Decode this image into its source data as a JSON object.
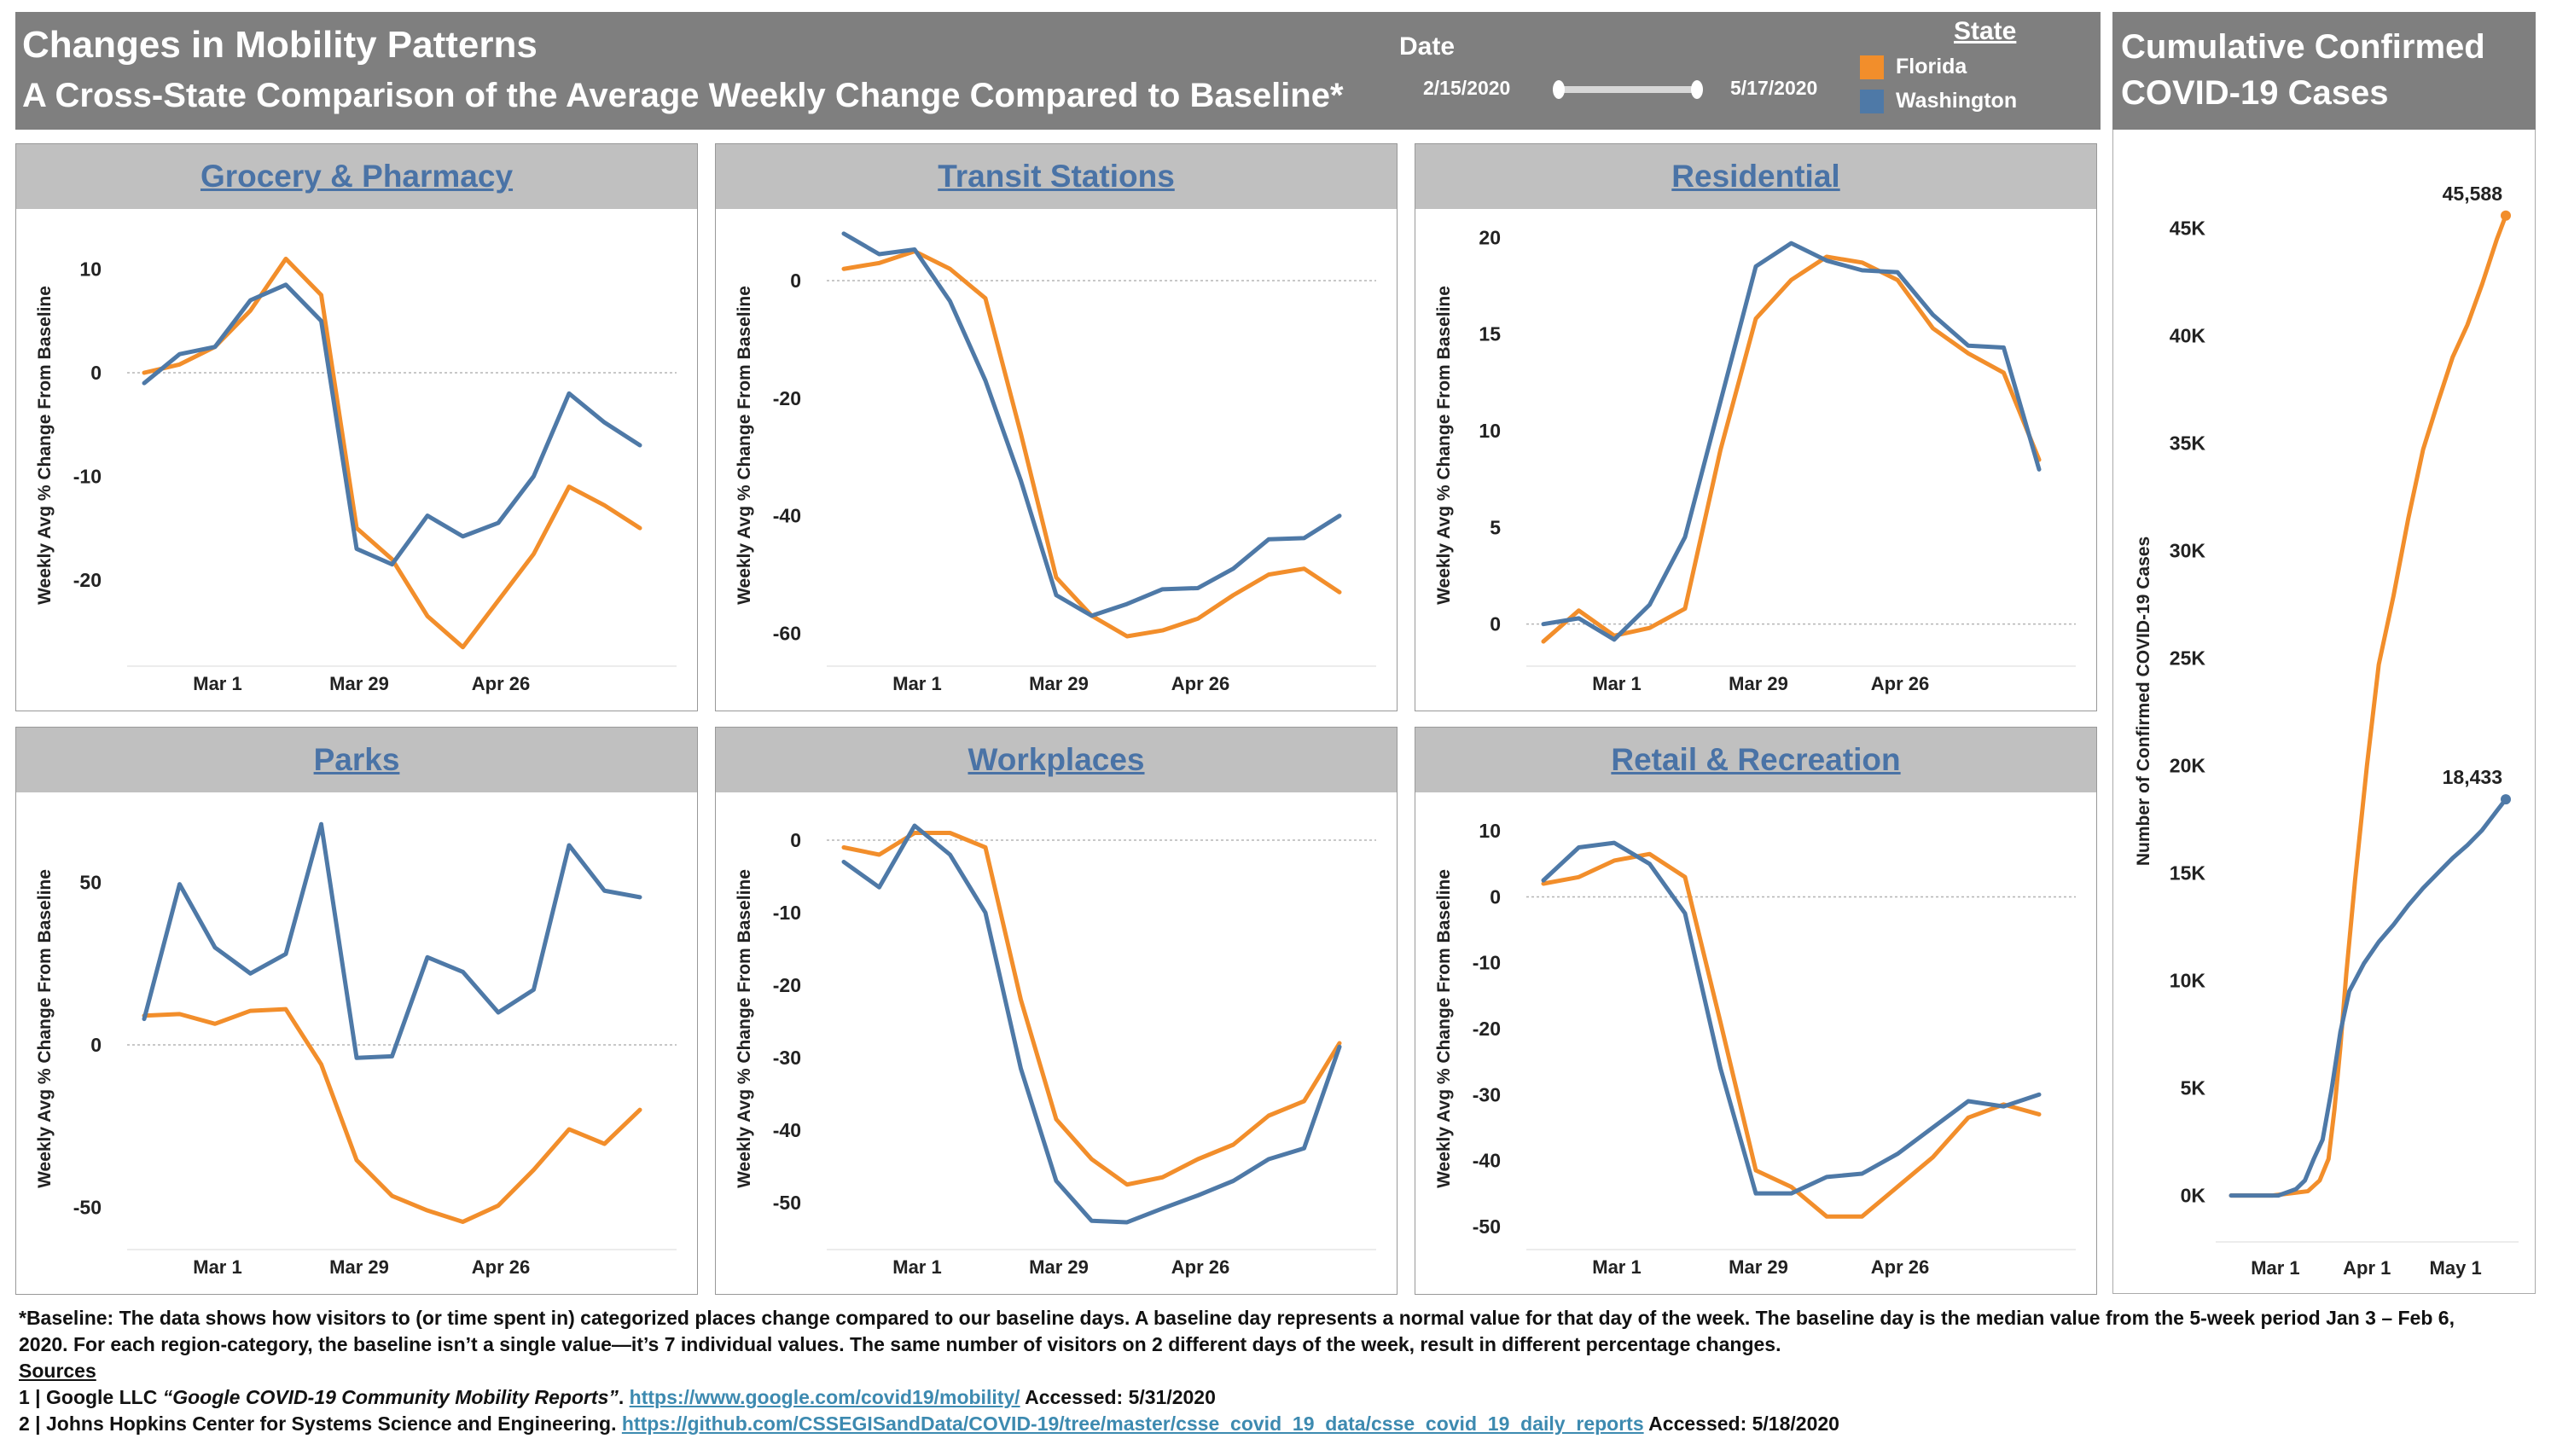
{
  "header": {
    "title": "Changes in Mobility Patterns",
    "subtitle": "A Cross-State Comparison of the Average Weekly Change Compared to Baseline*",
    "date_label": "Date",
    "date_start": "2/15/2020",
    "date_end": "5/17/2020",
    "state_label": "State"
  },
  "legend": [
    {
      "name": "Florida",
      "color": "#f28e2b"
    },
    {
      "name": "Washington",
      "color": "#4e79a7"
    }
  ],
  "right_header": {
    "title_line1": "Cumulative Confirmed",
    "title_line2": "COVID-19 Cases"
  },
  "chart_data": [
    {
      "type": "line",
      "title": "Grocery & Pharmacy",
      "ylabel": "Weekly Avg % Change From Baseline",
      "x_tick_labels": [
        "Mar 1",
        "Mar 29",
        "Apr 26"
      ],
      "ylim": [
        -28,
        14
      ],
      "y_ticks": [
        10,
        0,
        -10,
        -20
      ],
      "series": [
        {
          "name": "Florida",
          "values": [
            0,
            0.8,
            2.5,
            6,
            11,
            7.5,
            -15,
            -18,
            -23.5,
            -26.5,
            -22,
            -17.5,
            -11,
            -12.8,
            -15
          ]
        },
        {
          "name": "Washington",
          "values": [
            -1,
            1.8,
            2.5,
            7,
            8.5,
            5,
            -17,
            -18.5,
            -13.8,
            -15.8,
            -14.5,
            -10,
            -2,
            -4.8,
            -7
          ]
        }
      ]
    },
    {
      "type": "line",
      "title": "Transit Stations",
      "ylabel": "Weekly Avg % Change From Baseline",
      "x_tick_labels": [
        "Mar 1",
        "Mar 29",
        "Apr 26"
      ],
      "ylim": [
        -65,
        9
      ],
      "y_ticks": [
        0,
        -20,
        -40,
        -60
      ],
      "series": [
        {
          "name": "Florida",
          "values": [
            2,
            3,
            5,
            2,
            -3,
            -26,
            -50.5,
            -57,
            -60.5,
            -59.5,
            -57.5,
            -53.5,
            -50,
            -49,
            -53
          ]
        },
        {
          "name": "Washington",
          "values": [
            8,
            4.5,
            5.3,
            -3.5,
            -17,
            -34,
            -53.5,
            -57,
            -55,
            -52.5,
            -52.3,
            -49,
            -44,
            -43.8,
            -40
          ]
        }
      ]
    },
    {
      "type": "line",
      "title": "Residential",
      "ylabel": "Weekly Avg % Change From Baseline",
      "x_tick_labels": [
        "Mar 1",
        "Mar 29",
        "Apr 26"
      ],
      "ylim": [
        -2,
        20.5
      ],
      "y_ticks": [
        20,
        15,
        10,
        5,
        0
      ],
      "series": [
        {
          "name": "Florida",
          "values": [
            -0.9,
            0.7,
            -0.6,
            -0.2,
            0.8,
            9,
            15.8,
            17.8,
            19,
            18.7,
            17.8,
            15.3,
            14,
            13,
            8.5
          ]
        },
        {
          "name": "Washington",
          "values": [
            0,
            0.3,
            -0.8,
            1,
            4.5,
            11.5,
            18.5,
            19.7,
            18.8,
            18.3,
            18.2,
            16,
            14.4,
            14.3,
            8
          ]
        }
      ]
    },
    {
      "type": "line",
      "title": "Parks",
      "ylabel": "Weekly Avg % Change From Baseline",
      "x_tick_labels": [
        "Mar 1",
        "Mar 29",
        "Apr 26"
      ],
      "ylim": [
        -62,
        72
      ],
      "y_ticks": [
        50,
        0,
        -50
      ],
      "series": [
        {
          "name": "Florida",
          "values": [
            9,
            9.5,
            6.5,
            10.5,
            11,
            -6,
            -35.5,
            -46.5,
            -51,
            -54.5,
            -49.5,
            -38.5,
            -26,
            -30.5,
            -20
          ]
        },
        {
          "name": "Washington",
          "values": [
            8,
            49.5,
            30,
            22,
            28,
            68,
            -4,
            -3.5,
            27,
            22.5,
            10,
            17,
            61.5,
            47.5,
            45.5
          ]
        }
      ]
    },
    {
      "type": "line",
      "title": "Workplaces",
      "ylabel": "Weekly Avg % Change From Baseline",
      "x_tick_labels": [
        "Mar 1",
        "Mar 29",
        "Apr 26"
      ],
      "ylim": [
        -56,
        4
      ],
      "y_ticks": [
        0,
        -10,
        -20,
        -30,
        -40,
        -50
      ],
      "series": [
        {
          "name": "Florida",
          "values": [
            -1,
            -2,
            1,
            1,
            -1,
            -22,
            -38.5,
            -44,
            -47.5,
            -46.5,
            -44,
            -42,
            -38,
            -36,
            -28
          ]
        },
        {
          "name": "Washington",
          "values": [
            -3,
            -6.5,
            2,
            -2,
            -10,
            -31.5,
            -47,
            -52.5,
            -52.7,
            -50.8,
            -49,
            -47,
            -44,
            -42.5,
            -28.5
          ]
        }
      ]
    },
    {
      "type": "line",
      "title": "Retail & Recreation",
      "ylabel": "Weekly Avg % Change From Baseline",
      "x_tick_labels": [
        "Mar 1",
        "Mar 29",
        "Apr 26"
      ],
      "ylim": [
        -53,
        13
      ],
      "y_ticks": [
        10,
        0,
        -10,
        -20,
        -30,
        -40,
        -50
      ],
      "series": [
        {
          "name": "Florida",
          "values": [
            2,
            3,
            5.5,
            6.5,
            3,
            -19,
            -41.5,
            -44,
            -48.5,
            -48.5,
            -44,
            -39.5,
            -33.5,
            -31.5,
            -33
          ]
        },
        {
          "name": "Washington",
          "values": [
            2.5,
            7.5,
            8.2,
            5,
            -2.5,
            -26,
            -45,
            -45,
            -42.5,
            -42,
            -39,
            -35,
            -31,
            -31.8,
            -30
          ]
        }
      ]
    },
    {
      "type": "line",
      "title": "Cumulative Confirmed COVID-19 Cases",
      "ylabel": "Number of Confirmed COVID-19 Cases",
      "x_tick_labels": [
        "Mar 1",
        "Apr 1",
        "May 1"
      ],
      "ylim": [
        -2000,
        48000
      ],
      "y_ticks": [
        45000,
        40000,
        35000,
        30000,
        25000,
        20000,
        15000,
        10000,
        5000,
        0
      ],
      "y_tick_labels": [
        "45K",
        "40K",
        "35K",
        "30K",
        "25K",
        "20K",
        "15K",
        "10K",
        "5K",
        "0K"
      ],
      "x_day_range": [
        0,
        93
      ],
      "series": [
        {
          "name": "Florida",
          "end_label": "45,588",
          "x": [
            0,
            14,
            26,
            30,
            33,
            35,
            37,
            39,
            42,
            46,
            50,
            55,
            60,
            65,
            70,
            75,
            80,
            85,
            90,
            93
          ],
          "values": [
            0,
            0,
            200,
            700,
            1700,
            4000,
            6900,
            10300,
            14700,
            20000,
            24700,
            27900,
            31500,
            34700,
            36900,
            39000,
            40500,
            42400,
            44500,
            45588
          ]
        },
        {
          "name": "Washington",
          "end_label": "18,433",
          "x": [
            0,
            16,
            22,
            25,
            28,
            31,
            34,
            37,
            40,
            45,
            50,
            55,
            60,
            65,
            70,
            75,
            80,
            85,
            90,
            93
          ],
          "values": [
            0,
            0,
            300,
            700,
            1700,
            2600,
            4900,
            7600,
            9500,
            10800,
            11800,
            12600,
            13500,
            14300,
            15000,
            15700,
            16300,
            17000,
            17900,
            18433
          ]
        }
      ]
    }
  ],
  "footer": {
    "baseline_line1": "*Baseline: The data shows how visitors to (or time spent in) categorized places change compared to our baseline days. A baseline day represents a normal value for that day of the week. The baseline day is the median value from the 5-week period Jan 3 – Feb 6,",
    "baseline_line2": "2020. For each region-category, the baseline isn’t a single value—it’s 7 individual values. The same number of visitors on 2 different days of the week, result in different percentage changes.",
    "sources_label": "Sources",
    "source1_prefix": "1 | Google LLC ",
    "source1_title": "“Google COVID-19 Community Mobility Reports”",
    "source1_mid": ". ",
    "source1_url": "https://www.google.com/covid19/mobility/",
    "source1_accessed": " Accessed: 5/31/2020",
    "source2_prefix": "2 | Johns Hopkins Center for Systems Science and Engineering. ",
    "source2_url": "https://github.com/CSSEGISandData/COVID-19/tree/master/csse_covid_19_data/csse_covid_19_daily_reports",
    "source2_accessed": " Accessed: 5/18/2020"
  }
}
